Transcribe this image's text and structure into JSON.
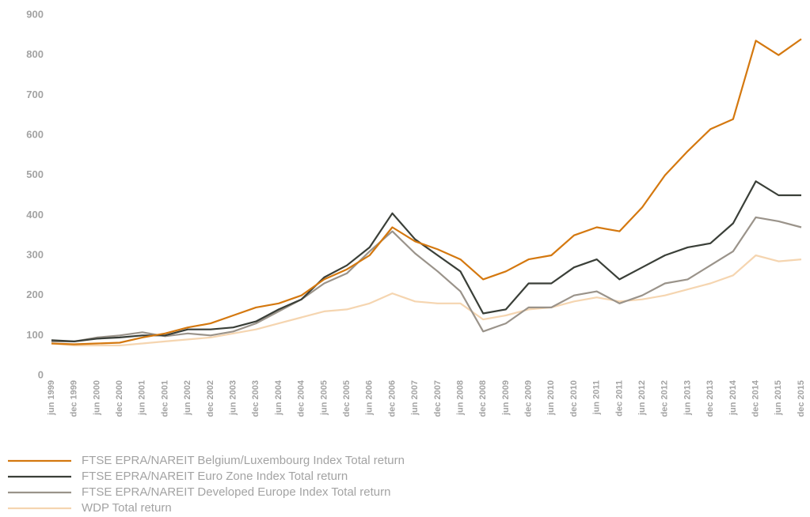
{
  "chart_data": {
    "type": "line",
    "categories": [
      "jun 1999",
      "dec 1999",
      "jun 2000",
      "dec 2000",
      "jun 2001",
      "dec 2001",
      "jun 2002",
      "dec 2002",
      "jun 2003",
      "dec 2003",
      "jun 2004",
      "dec 2004",
      "jun 2005",
      "dec 2005",
      "jun 2006",
      "dec 2006",
      "jun 2007",
      "dec 2007",
      "jun 2008",
      "dec 2008",
      "jun 2009",
      "dec 2009",
      "jun 2010",
      "dec 2010",
      "jun 2011",
      "dec 2011",
      "jun 2012",
      "dec 2012",
      "jun 2013",
      "dec 2013",
      "jun 2014",
      "dec 2014",
      "jun 2015",
      "dec 2015"
    ],
    "series": [
      {
        "name": "FTSE EPRA/NAREIT Belgium/Luxembourg Index Total return",
        "color": "#d4780f",
        "values": [
          80,
          78,
          80,
          82,
          95,
          105,
          120,
          130,
          150,
          170,
          180,
          200,
          240,
          265,
          300,
          370,
          335,
          315,
          290,
          240,
          260,
          290,
          300,
          350,
          370,
          360,
          420,
          500,
          560,
          615,
          640,
          836,
          800,
          840
        ]
      },
      {
        "name": "FTSE EPRA/NAREIT Euro Zone Index Total return",
        "color": "#3a3f38",
        "values": [
          88,
          85,
          92,
          95,
          100,
          100,
          115,
          115,
          120,
          135,
          165,
          190,
          245,
          275,
          320,
          405,
          340,
          300,
          260,
          155,
          165,
          230,
          230,
          270,
          290,
          240,
          270,
          300,
          320,
          330,
          380,
          485,
          450,
          450
        ]
      },
      {
        "name": "FTSE EPRA/NAREIT Developed Europe Index Total return",
        "color": "#9a938a",
        "values": [
          85,
          85,
          95,
          100,
          108,
          98,
          105,
          100,
          110,
          130,
          160,
          190,
          230,
          255,
          310,
          360,
          305,
          260,
          210,
          110,
          130,
          170,
          170,
          200,
          210,
          180,
          200,
          230,
          240,
          275,
          310,
          395,
          385,
          370
        ]
      },
      {
        "name": "WDP Total return",
        "color": "#f5d5b0",
        "values": [
          80,
          75,
          75,
          75,
          80,
          85,
          90,
          95,
          105,
          115,
          130,
          145,
          160,
          165,
          180,
          205,
          185,
          180,
          180,
          140,
          150,
          165,
          170,
          185,
          195,
          185,
          190,
          200,
          215,
          230,
          250,
          300,
          285,
          290
        ]
      }
    ],
    "ylim": [
      0,
      900
    ],
    "yticks": [
      0,
      100,
      200,
      300,
      400,
      500,
      600,
      700,
      800,
      900
    ]
  }
}
